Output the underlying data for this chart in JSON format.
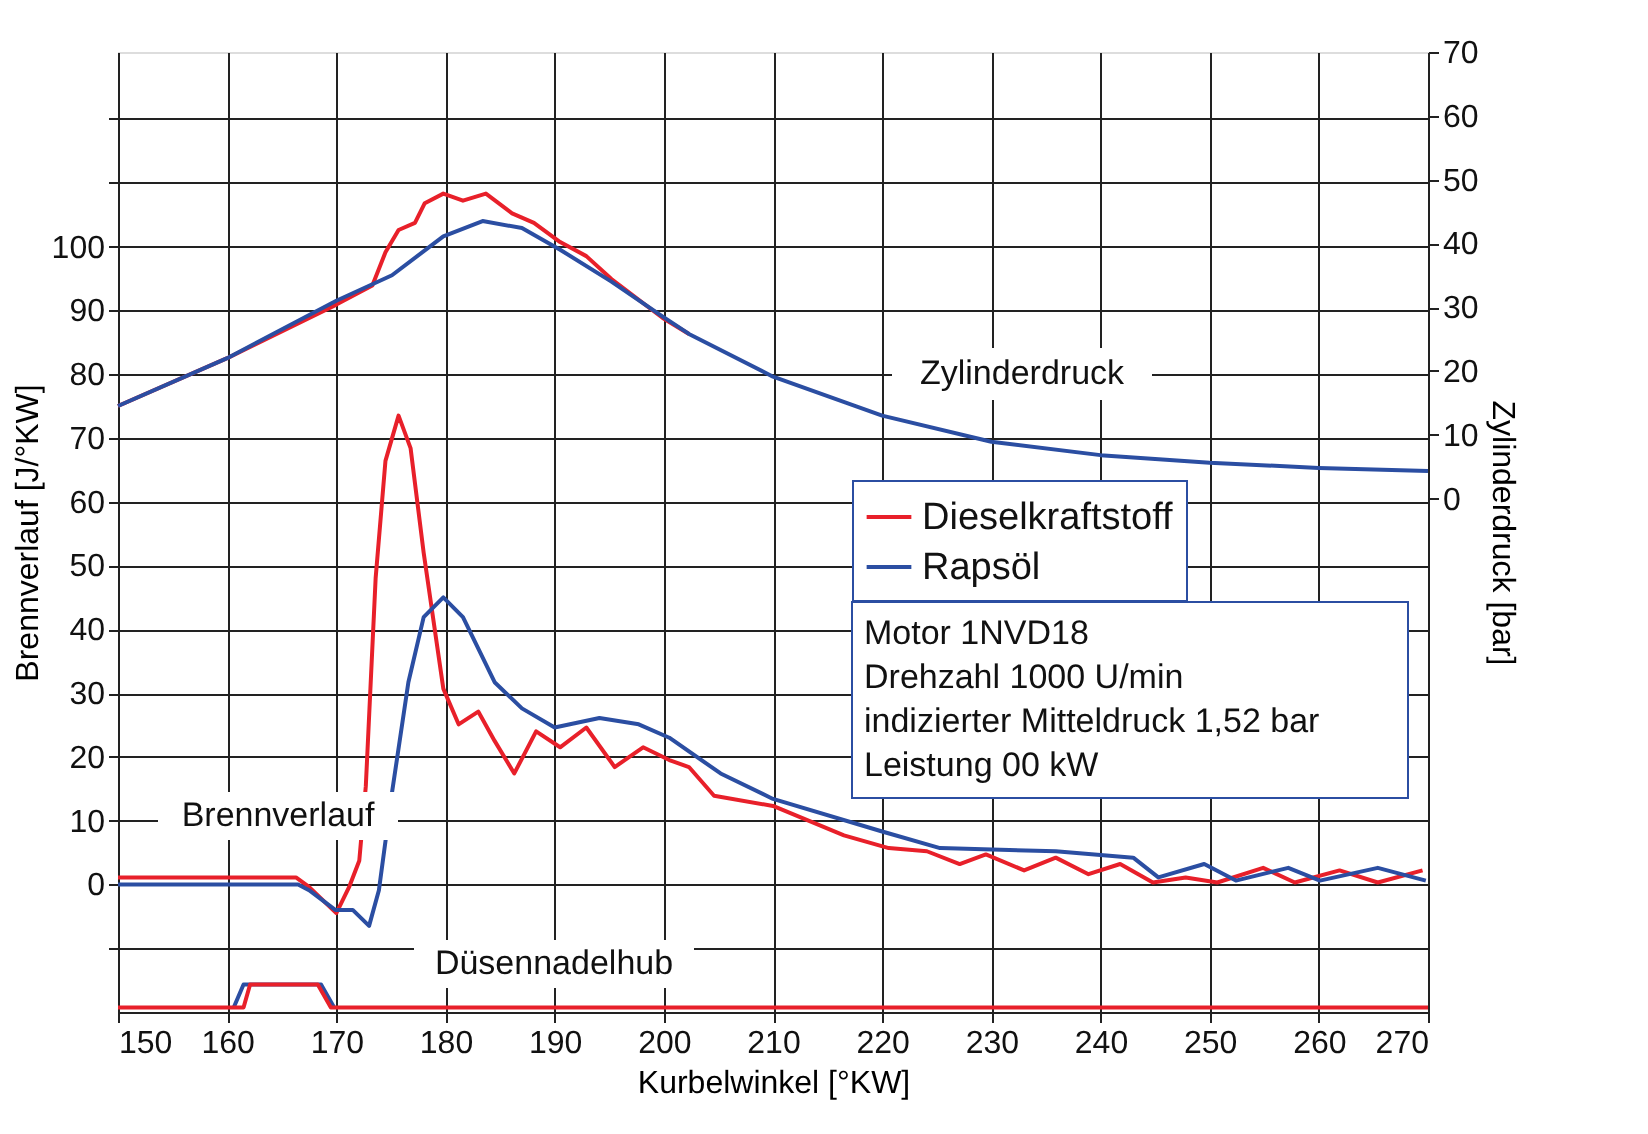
{
  "chart_data": {
    "type": "line",
    "xlabel": "Kurbelwinkel [°KW]",
    "ylabel": "Brennverlauf [J/°KW]",
    "y2label": "Zylinderdruck [bar]",
    "xlim": [
      150,
      270
    ],
    "xticks": [
      150,
      160,
      170,
      180,
      190,
      200,
      210,
      220,
      230,
      240,
      250,
      260,
      270
    ],
    "ylim": [
      -20,
      130.5
    ],
    "yticks": [
      {
        "value": -10,
        "label": null
      },
      0,
      10,
      20,
      30,
      40,
      50,
      60,
      70,
      80,
      90,
      100,
      {
        "value": 110,
        "label": null
      },
      {
        "value": 120,
        "label": null
      }
    ],
    "y2lim": [
      -80.5,
      70
    ],
    "y2ticks": [
      0,
      10,
      20,
      30,
      40,
      50,
      60,
      70
    ],
    "grid": true,
    "legend": "right",
    "marker": "none",
    "line_style": "solid",
    "series": [
      {
        "name": "Dieselkraftstoff",
        "color": "#e8202a",
        "x": [
          150,
          166.3,
          167.5,
          170,
          171.2,
          172.1,
          172.7,
          173.6,
          174.5,
          175.7,
          176.8,
          178,
          179.8,
          181.2,
          183,
          184.5,
          186.3,
          188.3,
          190.5,
          192.9,
          195.5,
          198.1,
          200.5,
          202.3,
          204.6,
          210,
          216.5,
          220.6,
          224.1,
          227.1,
          229.5,
          233,
          235.9,
          238.9,
          241.8,
          244.8,
          247.8,
          250.7,
          254.9,
          257.8,
          261.9,
          265.4,
          269.5
        ],
        "values": [
          1.1,
          1.1,
          -0.4,
          -4.5,
          -0.3,
          3.7,
          15.4,
          48,
          66.4,
          73.5,
          68.4,
          52,
          30.7,
          25.1,
          27.1,
          22.5,
          17.4,
          24,
          21.5,
          24.6,
          18.4,
          21.5,
          19.5,
          18.4,
          13.9,
          12.3,
          7.7,
          5.7,
          5.2,
          3.2,
          4.7,
          2.2,
          4.2,
          1.6,
          3.2,
          0.3,
          1.1,
          0.3,
          2.6,
          0.3,
          2.2,
          0.3,
          2.2
        ]
      },
      {
        "name": "Rapsöl",
        "color": "#2b4ea2",
        "x": [
          150,
          166.5,
          167.5,
          169.9,
          171.5,
          173,
          173.9,
          175.1,
          176.6,
          178,
          179.8,
          181.6,
          184.5,
          187,
          190,
          194.1,
          197.7,
          200.5,
          205.2,
          210,
          220,
          225.3,
          235.9,
          243,
          245.3,
          249.5,
          252.4,
          257.2,
          260.1,
          265.4,
          269.8
        ],
        "values": [
          0,
          0,
          -0.9,
          -4,
          -4,
          -6.5,
          -0.9,
          14.4,
          31.7,
          41.9,
          45,
          41.9,
          31.7,
          27.6,
          24.6,
          26.1,
          25.1,
          23,
          17.4,
          13.4,
          8.3,
          5.7,
          5.2,
          4.2,
          1.1,
          3.2,
          0.6,
          2.6,
          0.6,
          2.6,
          0.6
        ]
      },
      {
        "color": "#e8202a",
        "axis": "y2",
        "x": [
          150,
          160,
          170,
          173.3,
          174.5,
          175.7,
          177.2,
          178.1,
          179.8,
          181.6,
          183.7,
          186.1,
          188.1,
          190.5,
          192.9,
          195.2,
          199.9,
          202.3
        ],
        "values": [
          14.5,
          22,
          30.4,
          33.4,
          38.6,
          42.1,
          43.2,
          46.3,
          47.8,
          46.7,
          47.8,
          44.7,
          43.2,
          40.2,
          38,
          34.4,
          28.3,
          25.8
        ]
      },
      {
        "color": "#2b4ea2",
        "axis": "y2",
        "x": [
          150,
          160,
          170,
          175.1,
          179.8,
          183.4,
          187,
          190.5,
          195.2,
          199.9,
          202.3,
          210,
          220,
          230,
          240,
          250,
          260,
          270
        ],
        "values": [
          14.5,
          22,
          31,
          35,
          41.1,
          43.5,
          42.4,
          39,
          34,
          28.5,
          25.8,
          19.1,
          13,
          8.9,
          6.8,
          5.6,
          4.8,
          4.3
        ]
      },
      {
        "color": "#2b4ea2",
        "x": [
          160.6,
          161.5,
          168.6,
          169.8
        ],
        "values": [
          -19.3,
          -15.7,
          -15.7,
          -19.3
        ]
      },
      {
        "color": "#e8202a",
        "x": [
          150,
          161.5,
          162.1,
          168.3,
          169.5,
          270
        ],
        "values": [
          -19.3,
          -19.3,
          -15.7,
          -15.7,
          -19.3,
          -19.3
        ]
      }
    ],
    "annotations": [
      "Brennverlauf",
      "Zylinderdruck",
      "Düsennadelhub",
      "Motor 1NVD18",
      "Drehzahl  1000 U/min",
      "indizierter Mitteldruck 1,52 bar",
      "Leistung 00 kW"
    ]
  }
}
